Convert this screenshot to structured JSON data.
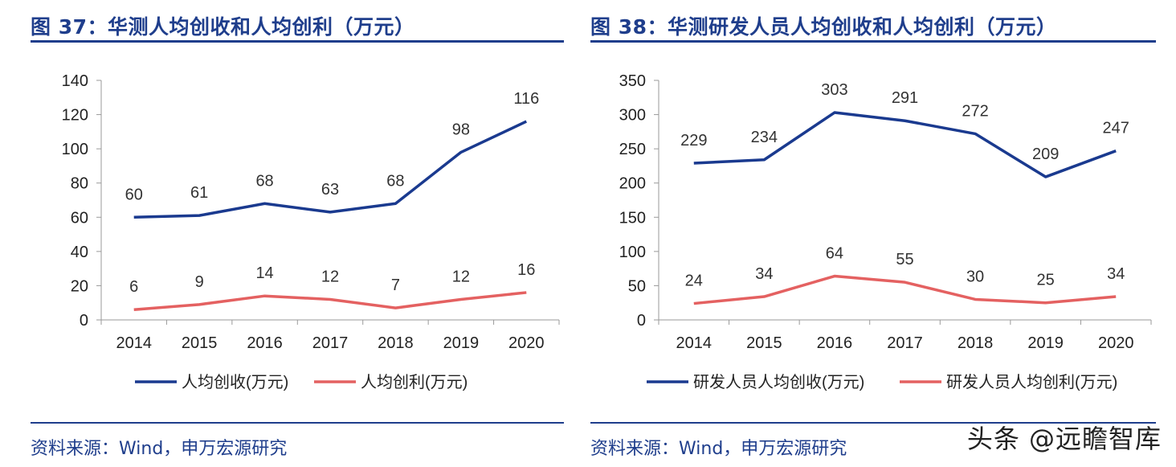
{
  "panels": [
    {
      "title": "图 37：华测人均创收和人均创利（万元）",
      "source": "资料来源：Wind，申万宏源研究",
      "chart_data": {
        "type": "line",
        "x": [
          "2014",
          "2015",
          "2016",
          "2017",
          "2018",
          "2019",
          "2020"
        ],
        "ylim": [
          0,
          140
        ],
        "yticks": [
          0,
          20,
          40,
          60,
          80,
          100,
          120,
          140
        ],
        "series": [
          {
            "name": "人均创收(万元)",
            "color": "#1a3a8f",
            "values": [
              60,
              61,
              68,
              63,
              68,
              98,
              116
            ]
          },
          {
            "name": "人均创利(万元)",
            "color": "#e46161",
            "values": [
              6,
              9,
              14,
              12,
              7,
              12,
              16
            ]
          }
        ],
        "legend": "bottom",
        "grid": false
      }
    },
    {
      "title": "图 38：华测研发人员人均创收和人均创利（万元）",
      "source": "资料来源：Wind，申万宏源研究",
      "chart_data": {
        "type": "line",
        "x": [
          "2014",
          "2015",
          "2016",
          "2017",
          "2018",
          "2019",
          "2020"
        ],
        "ylim": [
          0,
          350
        ],
        "yticks": [
          0,
          50,
          100,
          150,
          200,
          250,
          300,
          350
        ],
        "series": [
          {
            "name": "研发人员人均创收(万元)",
            "color": "#1a3a8f",
            "values": [
              229,
              234,
              303,
              291,
              272,
              209,
              247
            ]
          },
          {
            "name": "研发人员人均创利(万元)",
            "color": "#e46161",
            "values": [
              24,
              34,
              64,
              55,
              30,
              25,
              34
            ]
          }
        ],
        "legend": "bottom",
        "grid": false
      }
    }
  ],
  "watermark": "头条 @远瞻智库"
}
